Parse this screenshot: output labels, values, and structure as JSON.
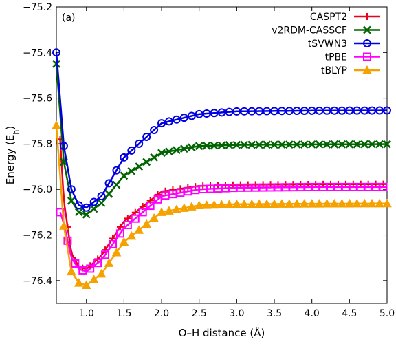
{
  "chart_data": {
    "type": "line",
    "panel_label": "(a)",
    "xlabel": "O–H distance (Å)",
    "ylabel_main": "Energy (E",
    "ylabel_sub": "h",
    "ylabel_end": ")",
    "xlim": [
      0.6,
      5.0
    ],
    "ylim": [
      -76.5,
      -75.2
    ],
    "xticks": [
      1.0,
      1.5,
      2.0,
      2.5,
      3.0,
      3.5,
      4.0,
      4.5,
      5.0
    ],
    "xtick_labels": [
      "1.0",
      "1.5",
      "2.0",
      "2.5",
      "3.0",
      "3.5",
      "4.0",
      "4.5",
      "5.0"
    ],
    "yticks": [
      -75.2,
      -75.4,
      -75.6,
      -75.8,
      -76.0,
      -76.2,
      -76.4
    ],
    "ytick_labels": [
      "−75.2",
      "−75.4",
      "−75.6",
      "−75.8",
      "−76.0",
      "−76.2",
      "−76.4"
    ],
    "grid": false,
    "legend_position": "top-right",
    "series": [
      {
        "name": "CASPT2",
        "color": "#e8001c",
        "marker": "plus",
        "x": [
          0.65,
          0.7,
          0.8,
          0.9,
          1.0,
          1.2,
          1.5,
          2.0,
          2.5,
          3.0,
          4.0,
          5.0
        ],
        "y": [
          -75.78,
          -76.05,
          -76.28,
          -76.34,
          -76.35,
          -76.29,
          -76.14,
          -76.01,
          -75.985,
          -75.98,
          -75.978,
          -75.977
        ]
      },
      {
        "name": "v2RDM-CASSCF",
        "color": "#006400",
        "marker": "cross",
        "x": [
          0.6,
          0.7,
          0.8,
          0.9,
          1.0,
          1.2,
          1.5,
          2.0,
          2.5,
          3.0,
          4.0,
          5.0
        ],
        "y": [
          -75.45,
          -75.88,
          -76.05,
          -76.1,
          -76.11,
          -76.06,
          -75.94,
          -75.84,
          -75.81,
          -75.805,
          -75.803,
          -75.802
        ]
      },
      {
        "name": "tSVWN3",
        "color": "#0000e0",
        "marker": "circle",
        "x": [
          0.6,
          0.7,
          0.8,
          0.9,
          1.0,
          1.2,
          1.5,
          2.0,
          2.5,
          3.0,
          4.0,
          5.0
        ],
        "y": [
          -75.4,
          -75.81,
          -76.0,
          -76.07,
          -76.08,
          -76.03,
          -75.86,
          -75.71,
          -75.67,
          -75.658,
          -75.655,
          -75.654
        ]
      },
      {
        "name": "tPBE",
        "color": "#ff00ff",
        "marker": "square",
        "x": [
          0.65,
          0.7,
          0.8,
          0.9,
          1.0,
          1.2,
          1.5,
          2.0,
          2.5,
          3.0,
          4.0,
          5.0
        ],
        "y": [
          -76.1,
          -76.15,
          -76.3,
          -76.35,
          -76.36,
          -76.31,
          -76.17,
          -76.03,
          -76.0,
          -75.993,
          -75.99,
          -75.99
        ]
      },
      {
        "name": "tBLYP",
        "color": "#f5a100",
        "marker": "triangle",
        "x": [
          0.6,
          0.7,
          0.8,
          0.9,
          1.0,
          1.2,
          1.5,
          2.0,
          2.5,
          3.0,
          4.0,
          5.0
        ],
        "y": [
          -75.72,
          -76.16,
          -76.36,
          -76.41,
          -76.42,
          -76.37,
          -76.23,
          -76.1,
          -76.07,
          -76.065,
          -76.063,
          -76.062
        ]
      }
    ]
  }
}
